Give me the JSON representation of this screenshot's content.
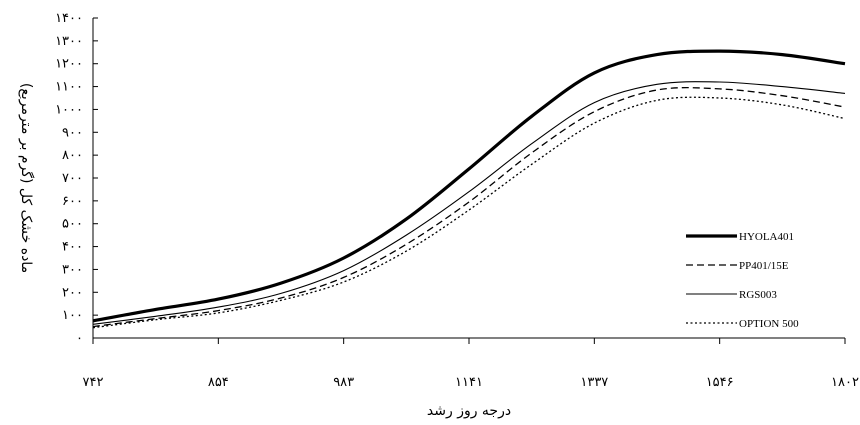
{
  "chart_data": {
    "type": "line",
    "xlabel": "درجه روز رشد",
    "ylabel": "ماده خشک کل (گرم بر مترمربع)",
    "ylim": [
      0,
      1400
    ],
    "y_ticks": [
      0,
      100,
      200,
      300,
      400,
      500,
      600,
      700,
      800,
      900,
      1000,
      1100,
      1200,
      1300,
      1400
    ],
    "y_tick_labels": [
      "۰",
      "۱۰۰",
      "۲۰۰",
      "۳۰۰",
      "۴۰۰",
      "۵۰۰",
      "۶۰۰",
      "۷۰۰",
      "۸۰۰",
      "۹۰۰",
      "۱۰۰۰",
      "۱۱۰۰",
      "۱۲۰۰",
      "۱۳۰۰",
      "۱۴۰۰"
    ],
    "x_tick_labels": [
      "۷۴۲",
      "۸۵۴",
      "۹۸۳",
      "۱۱۴۱",
      "۱۳۳۷",
      "۱۵۴۶",
      "۱۸۰۲"
    ],
    "x": [
      0,
      0.5,
      1,
      1.5,
      2,
      2.5,
      3,
      3.5,
      4,
      4.5,
      5,
      5.5,
      6
    ],
    "grid": false,
    "legend_position": "bottom-right",
    "series": [
      {
        "name": "HYOLA401",
        "style": "thick-solid",
        "values": [
          75,
          125,
          170,
          240,
          350,
          520,
          740,
          970,
          1160,
          1240,
          1255,
          1240,
          1200
        ]
      },
      {
        "name": "PP401/15E",
        "style": "dashed",
        "values": [
          50,
          85,
          120,
          175,
          265,
          410,
          595,
          810,
          990,
          1085,
          1090,
          1060,
          1010
        ]
      },
      {
        "name": "RGS003",
        "style": "thin-solid",
        "values": [
          60,
          95,
          135,
          195,
          295,
          450,
          640,
          850,
          1030,
          1110,
          1120,
          1100,
          1070
        ]
      },
      {
        "name": "OPTION 500",
        "style": "dotted",
        "values": [
          45,
          80,
          110,
          165,
          245,
          380,
          560,
          760,
          940,
          1040,
          1050,
          1020,
          960
        ]
      }
    ]
  }
}
